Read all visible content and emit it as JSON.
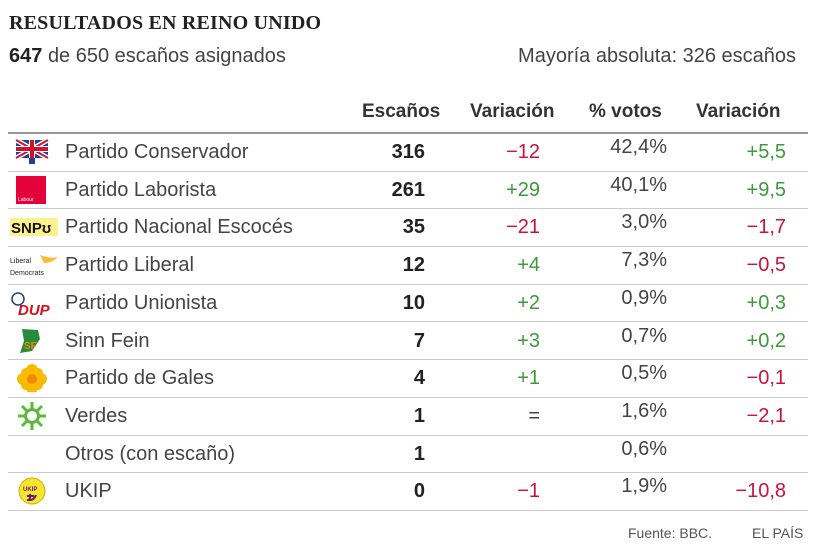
{
  "title": "RESULTADOS EN REINO UNIDO",
  "subtitle": {
    "assigned": "647",
    "rest": "de 650 escaños asignados"
  },
  "majority": "Mayoría absoluta: 326 escaños",
  "headers": [
    "Escaños",
    "Variación",
    "% votos",
    "Variación"
  ],
  "rows": [
    {
      "logo": "conservative-logo",
      "name": "Partido Conservador",
      "seats": "316",
      "seat_change": "−12",
      "votes": "42,4%",
      "vote_change": "+5,5"
    },
    {
      "logo": "labour-logo",
      "name": "Partido Laborista",
      "seats": "261",
      "seat_change": "+29",
      "votes": "40,1%",
      "vote_change": "+9,5"
    },
    {
      "logo": "snp-logo",
      "name": "Partido Nacional Escocés",
      "seats": "35",
      "seat_change": "−21",
      "votes": "3,0%",
      "vote_change": "−1,7"
    },
    {
      "logo": "libdem-logo",
      "name": "Partido Liberal",
      "seats": "12",
      "seat_change": "+4",
      "votes": "7,3%",
      "vote_change": "−0,5"
    },
    {
      "logo": "dup-logo",
      "name": "Partido Unionista",
      "seats": "10",
      "seat_change": "+2",
      "votes": "0,9%",
      "vote_change": "+0,3"
    },
    {
      "logo": "sinn-fein-logo",
      "name": "Sinn Fein",
      "seats": "7",
      "seat_change": "+3",
      "votes": "0,7%",
      "vote_change": "+0,2"
    },
    {
      "logo": "plaid-cymru-logo",
      "name": "Partido de Gales",
      "seats": "4",
      "seat_change": "+1",
      "votes": "0,5%",
      "vote_change": "−0,1"
    },
    {
      "logo": "green-logo",
      "name": "Verdes",
      "seats": "1",
      "seat_change": "=",
      "votes": "1,6%",
      "vote_change": "−2,1"
    },
    {
      "logo": "",
      "name": "Otros (con escaño)",
      "seats": "1",
      "seat_change": "",
      "votes": "0,6%",
      "vote_change": ""
    },
    {
      "logo": "ukip-logo",
      "name": "UKIP",
      "seats": "0",
      "seat_change": "−1",
      "votes": "1,9%",
      "vote_change": "−10,8"
    }
  ],
  "logo_text": {
    "labour": "Labour",
    "snp": "SNP",
    "libdem1": "Liberal",
    "libdem2": "Democrats",
    "dup": "DUP",
    "ukip": "UKIP",
    "sf": "SF"
  },
  "source": "Fuente: BBC.",
  "brand": "EL PAÍS",
  "colors": {
    "positive": "#3d9a3a",
    "negative": "#c8143c"
  }
}
